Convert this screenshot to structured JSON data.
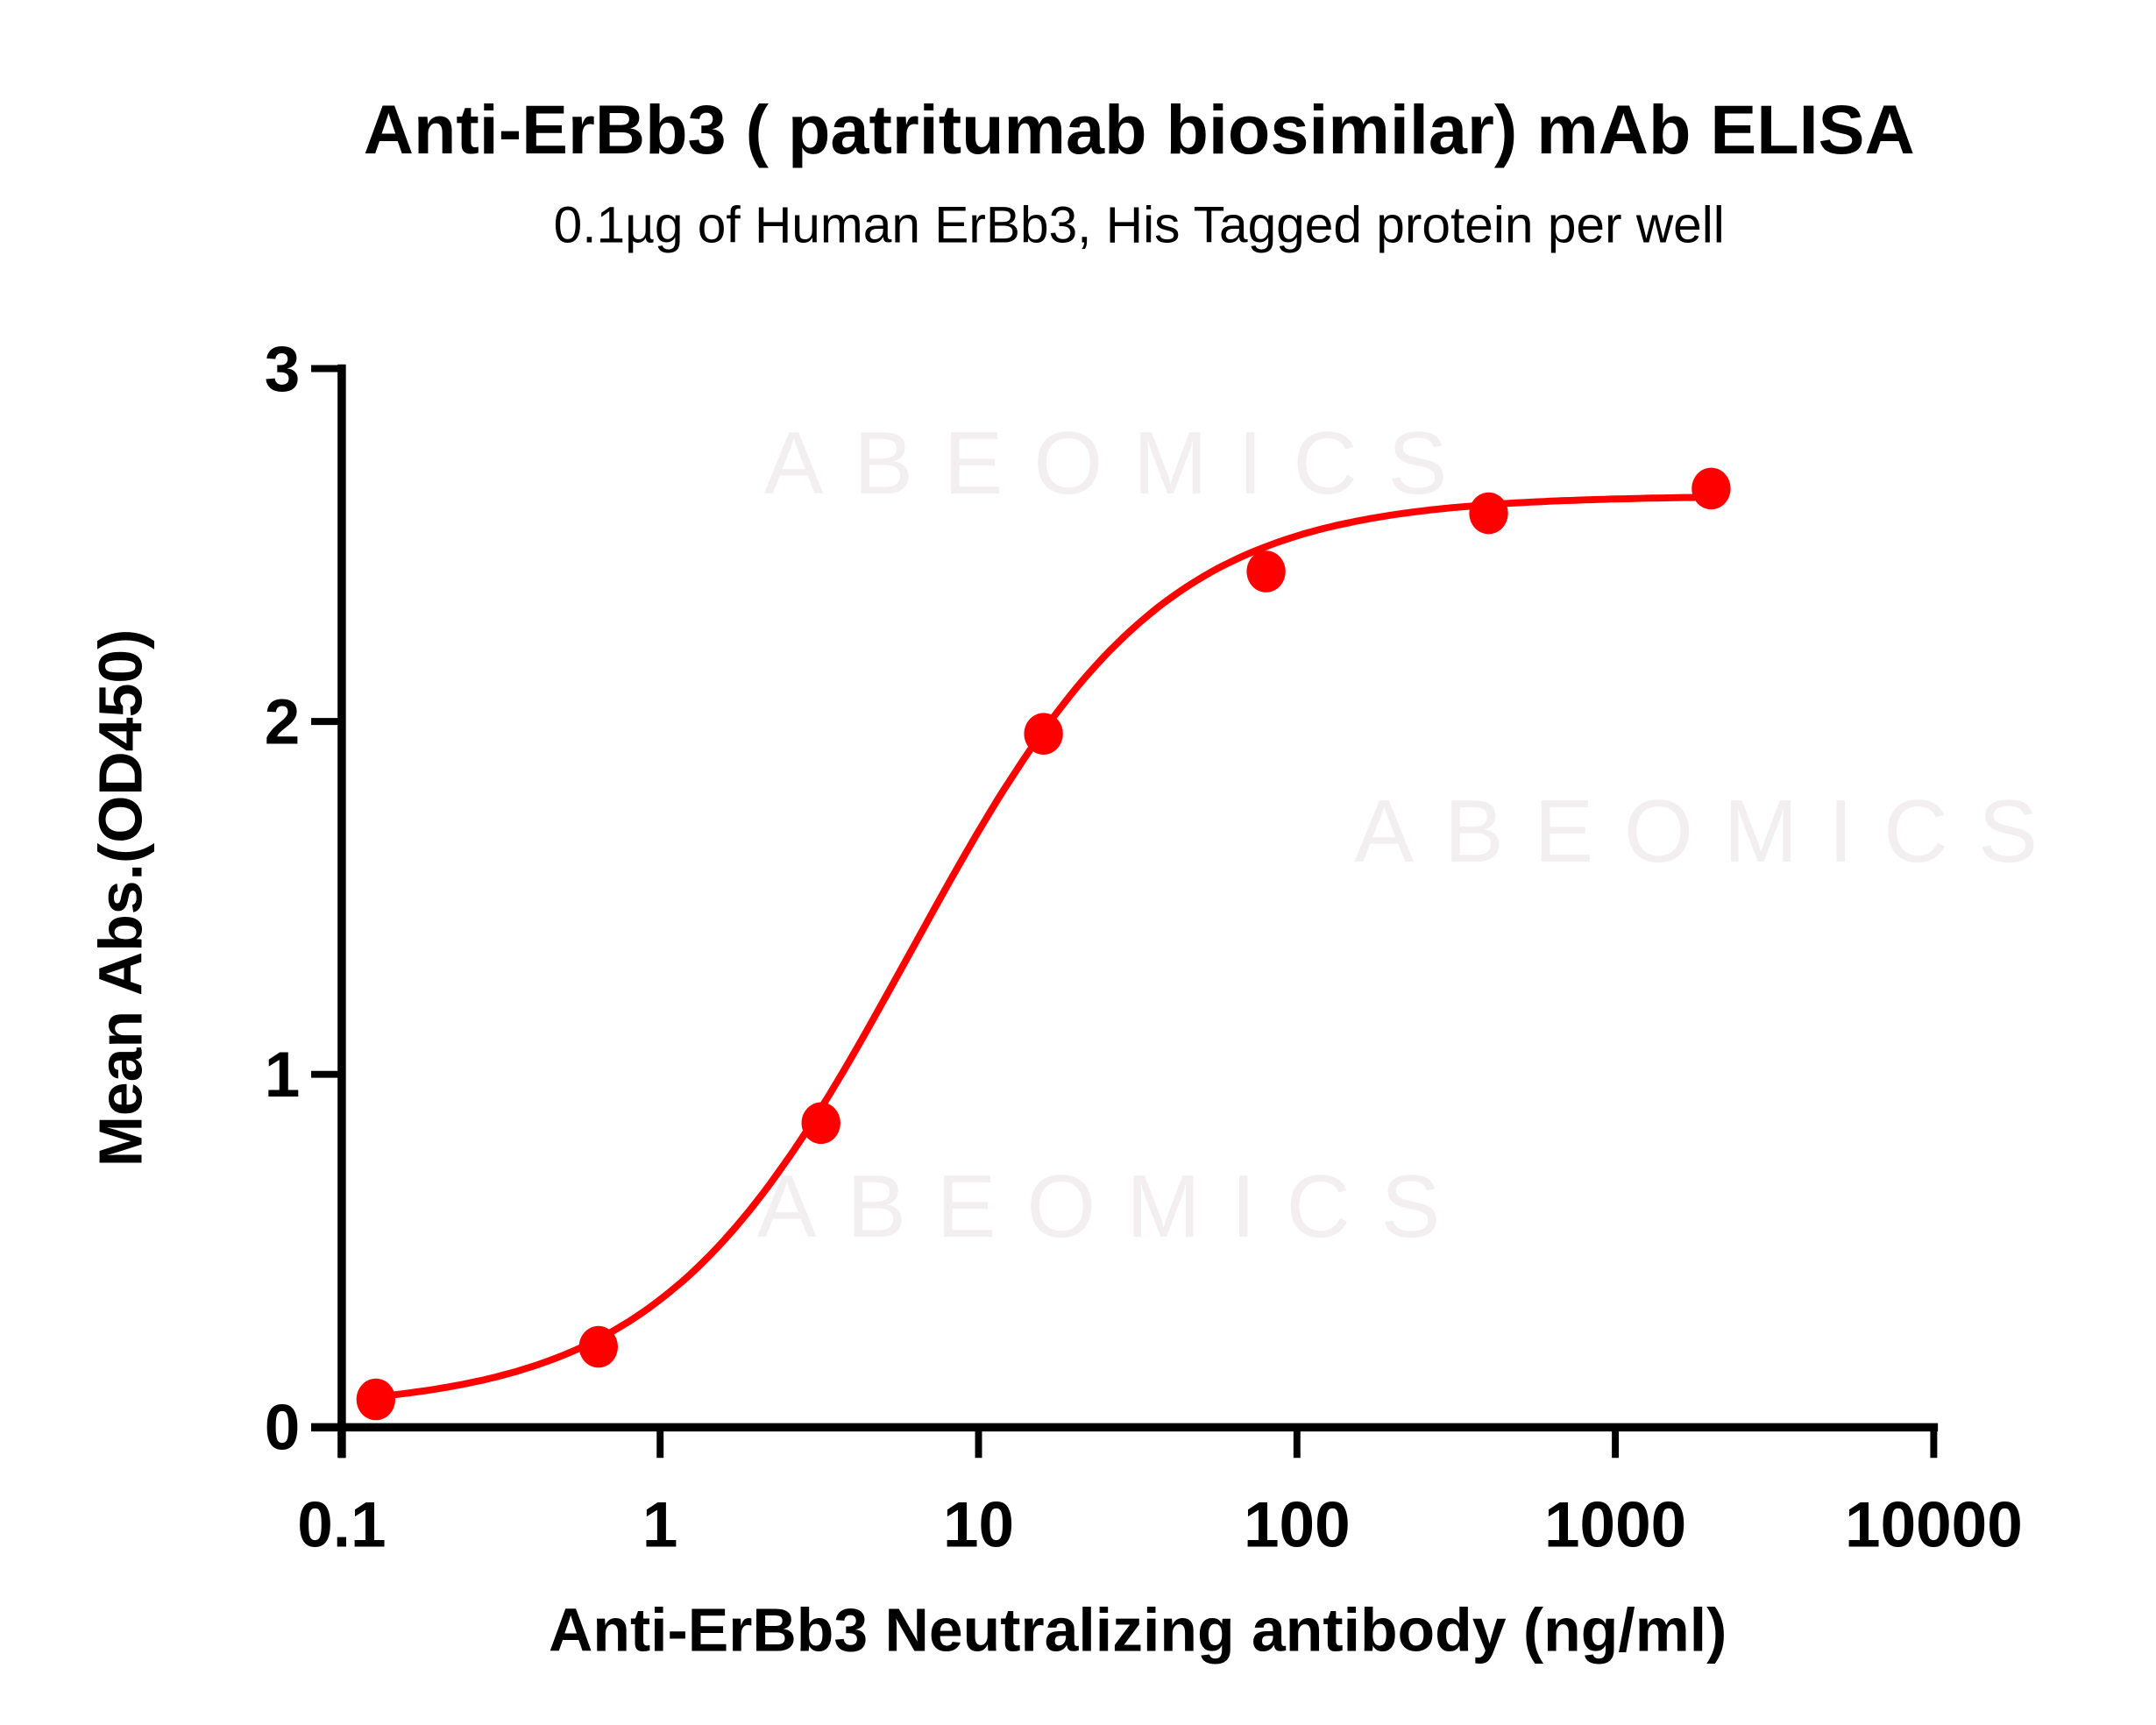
{
  "chart_data": {
    "type": "scatter",
    "title": "Anti-ErBb3 ( patritumab biosimilar) mAb ELISA",
    "subtitle": "0.1µg of Human ErBb3, His Tagged protein per well",
    "xlabel": "Anti-ErBb3 Neutralizing antibody (ng/ml)",
    "ylabel": "Mean Abs.(OD450)",
    "x_scale": "log",
    "xlim": [
      0.1,
      10000
    ],
    "ylim": [
      0,
      3
    ],
    "x_ticks": [
      "0.1",
      "1",
      "10",
      "100",
      "1000",
      "10000"
    ],
    "x_tick_values": [
      0.1,
      1,
      10,
      100,
      1000,
      10000
    ],
    "y_ticks": [
      "0",
      "1",
      "2",
      "3"
    ],
    "y_tick_values": [
      0,
      1,
      2,
      3
    ],
    "grid": false,
    "color": "#ff0000",
    "points": {
      "x": [
        0.128,
        0.64,
        3.2,
        16,
        80,
        400,
        2000
      ],
      "y": [
        0.079,
        0.228,
        0.862,
        1.965,
        2.425,
        2.59,
        2.66
      ]
    },
    "fit_curve": {
      "model": "4PL",
      "bottom": 0.05,
      "top": 2.64,
      "ec50": 6.1,
      "hill": 1.1
    }
  },
  "watermark": "ABEOMICS"
}
